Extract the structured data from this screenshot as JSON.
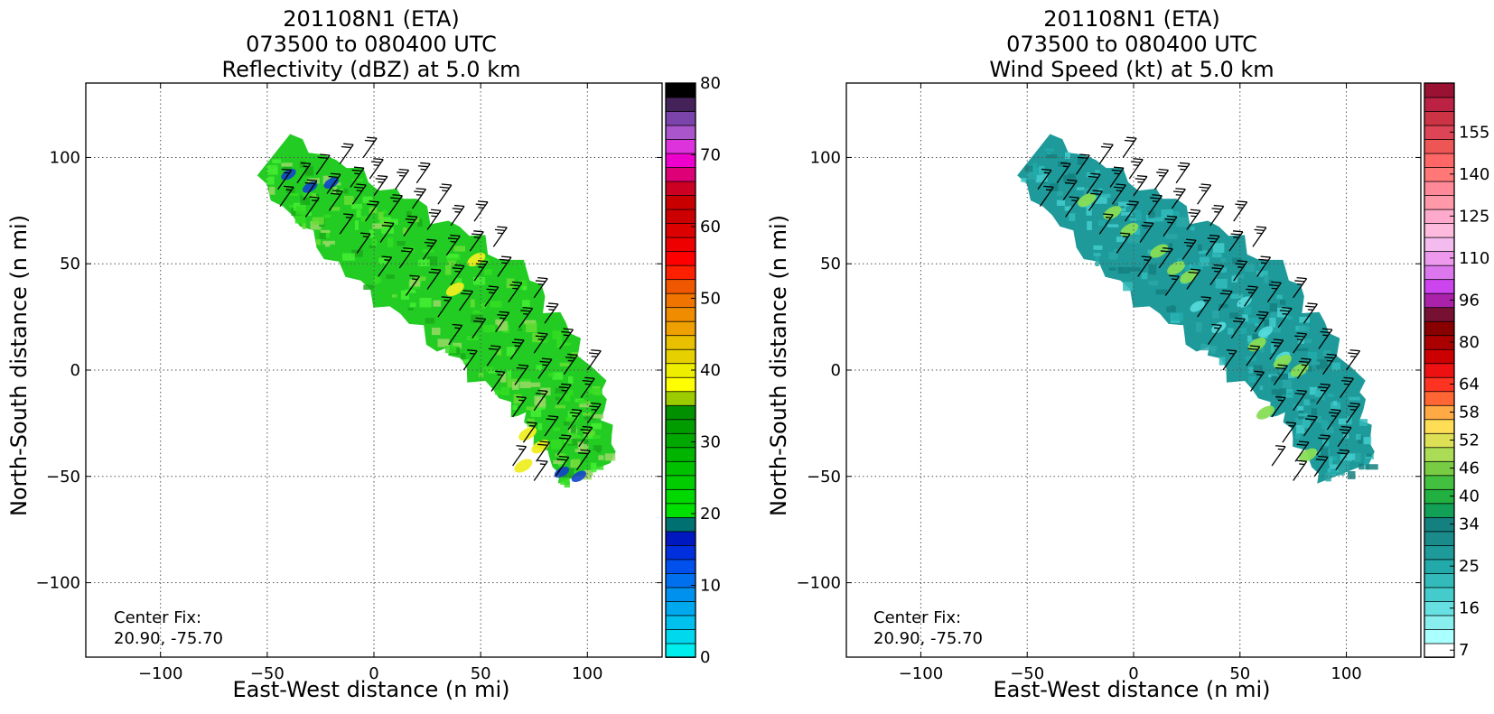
{
  "chart_data": [
    {
      "type": "heatmap",
      "title_lines": [
        "201108N1 (ETA)",
        "073500 to 080400 UTC",
        "Reflectivity (dBZ) at 5.0 km"
      ],
      "xlabel": "East-West distance (n mi)",
      "ylabel": "North-South distance (n mi)",
      "xlim": [
        -135,
        135
      ],
      "ylim": [
        -135,
        135
      ],
      "xticks": [
        -100,
        -50,
        0,
        50,
        100
      ],
      "yticks": [
        -100,
        -50,
        0,
        50,
        100
      ],
      "tick_labels_x": [
        "−100",
        "−50",
        "0",
        "50",
        "100"
      ],
      "tick_labels_y": [
        "−100",
        "−50",
        "0",
        "50",
        "100"
      ],
      "grid": true,
      "annotation_lines": [
        "Center Fix:",
        "20.90, -75.70"
      ],
      "colorbar": {
        "min": 0,
        "max": 80,
        "tick_values": [
          0,
          10,
          20,
          30,
          40,
          50,
          60,
          70,
          80
        ],
        "tick_labels": [
          "0",
          "10",
          "20",
          "30",
          "40",
          "50",
          "60",
          "70",
          "80"
        ],
        "colors": [
          "#00eeee",
          "#00d8ee",
          "#00c0ee",
          "#00a8ee",
          "#0090ee",
          "#0070ee",
          "#0050ee",
          "#0030dd",
          "#0018c0",
          "#007070",
          "#00e000",
          "#00d800",
          "#00cc00",
          "#00c000",
          "#00b400",
          "#00a800",
          "#009c00",
          "#009000",
          "#9ccc00",
          "#ffff00",
          "#eeee00",
          "#e6d000",
          "#e8c000",
          "#eea000",
          "#f08c00",
          "#f07400",
          "#f05800",
          "#ff2000",
          "#ff0000",
          "#ee0000",
          "#dd0000",
          "#cc0000",
          "#c80000",
          "#cc0022",
          "#dd0077",
          "#ee00cc",
          "#dd33dd",
          "#aa55cc",
          "#7a44aa",
          "#44225a",
          "#000000"
        ]
      },
      "field": {
        "band_axis": [
          [
            -48,
            100
          ],
          [
            0,
            62
          ],
          [
            50,
            28
          ],
          [
            85,
            -10
          ],
          [
            100,
            -48
          ]
        ],
        "band_half_width": [
          13,
          24,
          28,
          22,
          14
        ],
        "base_color": "#22cc22",
        "texture_colors": [
          "#33dd22",
          "#44ee33",
          "#1aaa1a",
          "#66dd33",
          "#99d866"
        ],
        "low_echo_color": "#1144cc",
        "high_echo_color": "#eeee22",
        "low_echo_regions": [
          [
            -40,
            92
          ],
          [
            -30,
            86
          ],
          [
            -20,
            88
          ],
          [
            88,
            -48
          ],
          [
            96,
            -50
          ]
        ],
        "high_echo_regions": [
          [
            38,
            38
          ],
          [
            48,
            52
          ],
          [
            72,
            -30
          ],
          [
            78,
            -36
          ],
          [
            70,
            -45
          ]
        ]
      },
      "barbs": [
        [
          -45,
          85,
          15
        ],
        [
          -36,
          88,
          15
        ],
        [
          -27,
          92,
          20
        ],
        [
          -16,
          97,
          20
        ],
        [
          -5,
          100,
          20
        ],
        [
          -44,
          77,
          15
        ],
        [
          -33,
          80,
          20
        ],
        [
          -22,
          83,
          20
        ],
        [
          -11,
          86,
          25
        ],
        [
          -2,
          90,
          25
        ],
        [
          -32,
          72,
          15
        ],
        [
          -21,
          75,
          20
        ],
        [
          -10,
          78,
          25
        ],
        [
          0,
          82,
          25
        ],
        [
          10,
          85,
          25
        ],
        [
          20,
          88,
          25
        ],
        [
          -16,
          64,
          15
        ],
        [
          -4,
          70,
          20
        ],
        [
          7,
          73,
          25
        ],
        [
          18,
          76,
          25
        ],
        [
          30,
          78,
          25
        ],
        [
          -8,
          55,
          15
        ],
        [
          3,
          60,
          20
        ],
        [
          14,
          63,
          25
        ],
        [
          25,
          66,
          25
        ],
        [
          36,
          68,
          25
        ],
        [
          47,
          70,
          25
        ],
        [
          2,
          44,
          15
        ],
        [
          12,
          48,
          20
        ],
        [
          23,
          52,
          25
        ],
        [
          34,
          54,
          25
        ],
        [
          45,
          56,
          25
        ],
        [
          56,
          58,
          25
        ],
        [
          15,
          35,
          15
        ],
        [
          25,
          38,
          20
        ],
        [
          36,
          40,
          25
        ],
        [
          47,
          42,
          25
        ],
        [
          58,
          44,
          25
        ],
        [
          30,
          25,
          15
        ],
        [
          40,
          28,
          20
        ],
        [
          52,
          30,
          25
        ],
        [
          63,
          32,
          25
        ],
        [
          75,
          34,
          25
        ],
        [
          35,
          12,
          15
        ],
        [
          46,
          15,
          20
        ],
        [
          57,
          18,
          25
        ],
        [
          68,
          20,
          25
        ],
        [
          80,
          22,
          25
        ],
        [
          42,
          0,
          15
        ],
        [
          53,
          2,
          20
        ],
        [
          64,
          5,
          25
        ],
        [
          75,
          8,
          25
        ],
        [
          87,
          10,
          25
        ],
        [
          55,
          -10,
          15
        ],
        [
          66,
          -7,
          20
        ],
        [
          77,
          -4,
          25
        ],
        [
          89,
          -2,
          25
        ],
        [
          100,
          0,
          25
        ],
        [
          65,
          -22,
          15
        ],
        [
          75,
          -19,
          20
        ],
        [
          86,
          -16,
          25
        ],
        [
          97,
          -13,
          25
        ],
        [
          70,
          -34,
          15
        ],
        [
          80,
          -31,
          20
        ],
        [
          91,
          -28,
          25
        ],
        [
          100,
          -25,
          25
        ],
        [
          65,
          -45,
          15
        ],
        [
          76,
          -43,
          20
        ],
        [
          86,
          -40,
          20
        ],
        [
          96,
          -36,
          25
        ],
        [
          75,
          -52,
          15
        ],
        [
          85,
          -50,
          20
        ],
        [
          95,
          -47,
          20
        ]
      ]
    },
    {
      "type": "heatmap",
      "title_lines": [
        "201108N1 (ETA)",
        "073500 to 080400 UTC",
        "Wind Speed (kt) at 5.0 km"
      ],
      "xlabel": "East-West distance (n mi)",
      "ylabel": "North-South distance (n mi)",
      "xlim": [
        -135,
        135
      ],
      "ylim": [
        -135,
        135
      ],
      "xticks": [
        -100,
        -50,
        0,
        50,
        100
      ],
      "yticks": [
        -100,
        -50,
        0,
        50,
        100
      ],
      "tick_labels_x": [
        "−100",
        "−50",
        "0",
        "50",
        "100"
      ],
      "tick_labels_y": [
        "−100",
        "−50",
        "0",
        "50",
        "100"
      ],
      "grid": true,
      "annotation_lines": [
        "Center Fix:",
        "20.90, -75.70"
      ],
      "colorbar": {
        "min": 7,
        "max": 160,
        "tick_labels": [
          "7",
          "16",
          "25",
          "34",
          "40",
          "46",
          "52",
          "58",
          "64",
          "80",
          "96",
          "110",
          "125",
          "140",
          "155"
        ],
        "tick_bin_index": [
          0,
          3,
          6,
          9,
          11,
          13,
          15,
          17,
          19,
          22,
          25,
          28,
          31,
          34,
          37
        ],
        "colors": [
          "#ffffff",
          "#aaffff",
          "#88eeee",
          "#66e0e0",
          "#44cccc",
          "#33bbbb",
          "#22aaaa",
          "#1e9a9a",
          "#1a8a8a",
          "#158080",
          "#11a055",
          "#22b040",
          "#44c040",
          "#77cc44",
          "#aadd55",
          "#dde055",
          "#ffdd55",
          "#ffaa44",
          "#ff6633",
          "#ff3322",
          "#ee1111",
          "#cc0000",
          "#aa0000",
          "#880000",
          "#771133",
          "#aa22aa",
          "#cc44ee",
          "#dd77ee",
          "#ee99ee",
          "#f4bbee",
          "#ffbbdd",
          "#ffaacc",
          "#ff99aa",
          "#ff8899",
          "#ff7777",
          "#ff6666",
          "#ee5555",
          "#dd4455",
          "#cc3344",
          "#bb2244",
          "#991133"
        ]
      },
      "field": {
        "band_axis": [
          [
            -48,
            100
          ],
          [
            0,
            62
          ],
          [
            50,
            28
          ],
          [
            85,
            -10
          ],
          [
            100,
            -48
          ]
        ],
        "band_half_width": [
          13,
          24,
          28,
          22,
          14
        ],
        "base_color": "#1e9a9a",
        "texture_colors": [
          "#33bbbb",
          "#44cccc",
          "#22aaaa",
          "#158080",
          "#2aa8a8"
        ],
        "low_echo_color": "#55dddd",
        "high_echo_color": "#88dd55",
        "low_echo_regions": [
          [
            40,
            20
          ],
          [
            52,
            32
          ],
          [
            62,
            18
          ],
          [
            70,
            6
          ],
          [
            30,
            30
          ]
        ],
        "high_echo_regions": [
          [
            -22,
            80
          ],
          [
            -10,
            74
          ],
          [
            12,
            56
          ],
          [
            20,
            48
          ],
          [
            26,
            44
          ],
          [
            58,
            12
          ],
          [
            70,
            4
          ],
          [
            78,
            0
          ],
          [
            62,
            -20
          ],
          [
            82,
            -40
          ],
          [
            -2,
            66
          ]
        ]
      },
      "barbs": [
        [
          -45,
          85,
          15
        ],
        [
          -36,
          88,
          15
        ],
        [
          -27,
          92,
          20
        ],
        [
          -16,
          97,
          20
        ],
        [
          -5,
          100,
          20
        ],
        [
          -44,
          77,
          15
        ],
        [
          -33,
          80,
          20
        ],
        [
          -22,
          83,
          20
        ],
        [
          -11,
          86,
          25
        ],
        [
          -2,
          90,
          25
        ],
        [
          -32,
          72,
          15
        ],
        [
          -21,
          75,
          20
        ],
        [
          -10,
          78,
          25
        ],
        [
          0,
          82,
          25
        ],
        [
          10,
          85,
          25
        ],
        [
          20,
          88,
          25
        ],
        [
          -16,
          64,
          15
        ],
        [
          -4,
          70,
          20
        ],
        [
          7,
          73,
          25
        ],
        [
          18,
          76,
          25
        ],
        [
          30,
          78,
          25
        ],
        [
          -8,
          55,
          15
        ],
        [
          3,
          60,
          20
        ],
        [
          14,
          63,
          25
        ],
        [
          25,
          66,
          25
        ],
        [
          36,
          68,
          25
        ],
        [
          47,
          70,
          25
        ],
        [
          2,
          44,
          15
        ],
        [
          12,
          48,
          20
        ],
        [
          23,
          52,
          25
        ],
        [
          34,
          54,
          25
        ],
        [
          45,
          56,
          25
        ],
        [
          56,
          58,
          25
        ],
        [
          15,
          35,
          15
        ],
        [
          25,
          38,
          20
        ],
        [
          36,
          40,
          25
        ],
        [
          47,
          42,
          25
        ],
        [
          58,
          44,
          25
        ],
        [
          30,
          25,
          15
        ],
        [
          40,
          28,
          20
        ],
        [
          52,
          30,
          25
        ],
        [
          63,
          32,
          25
        ],
        [
          75,
          34,
          25
        ],
        [
          35,
          12,
          15
        ],
        [
          46,
          15,
          20
        ],
        [
          57,
          18,
          25
        ],
        [
          68,
          20,
          25
        ],
        [
          80,
          22,
          25
        ],
        [
          42,
          0,
          15
        ],
        [
          53,
          2,
          20
        ],
        [
          64,
          5,
          25
        ],
        [
          75,
          8,
          25
        ],
        [
          87,
          10,
          25
        ],
        [
          55,
          -10,
          15
        ],
        [
          66,
          -7,
          20
        ],
        [
          77,
          -4,
          25
        ],
        [
          89,
          -2,
          25
        ],
        [
          100,
          0,
          25
        ],
        [
          65,
          -22,
          15
        ],
        [
          75,
          -19,
          20
        ],
        [
          86,
          -16,
          25
        ],
        [
          97,
          -13,
          25
        ],
        [
          70,
          -34,
          15
        ],
        [
          80,
          -31,
          20
        ],
        [
          91,
          -28,
          25
        ],
        [
          100,
          -25,
          25
        ],
        [
          65,
          -45,
          15
        ],
        [
          76,
          -43,
          20
        ],
        [
          86,
          -40,
          20
        ],
        [
          96,
          -36,
          25
        ],
        [
          75,
          -52,
          15
        ],
        [
          85,
          -50,
          20
        ],
        [
          95,
          -47,
          20
        ]
      ]
    }
  ]
}
